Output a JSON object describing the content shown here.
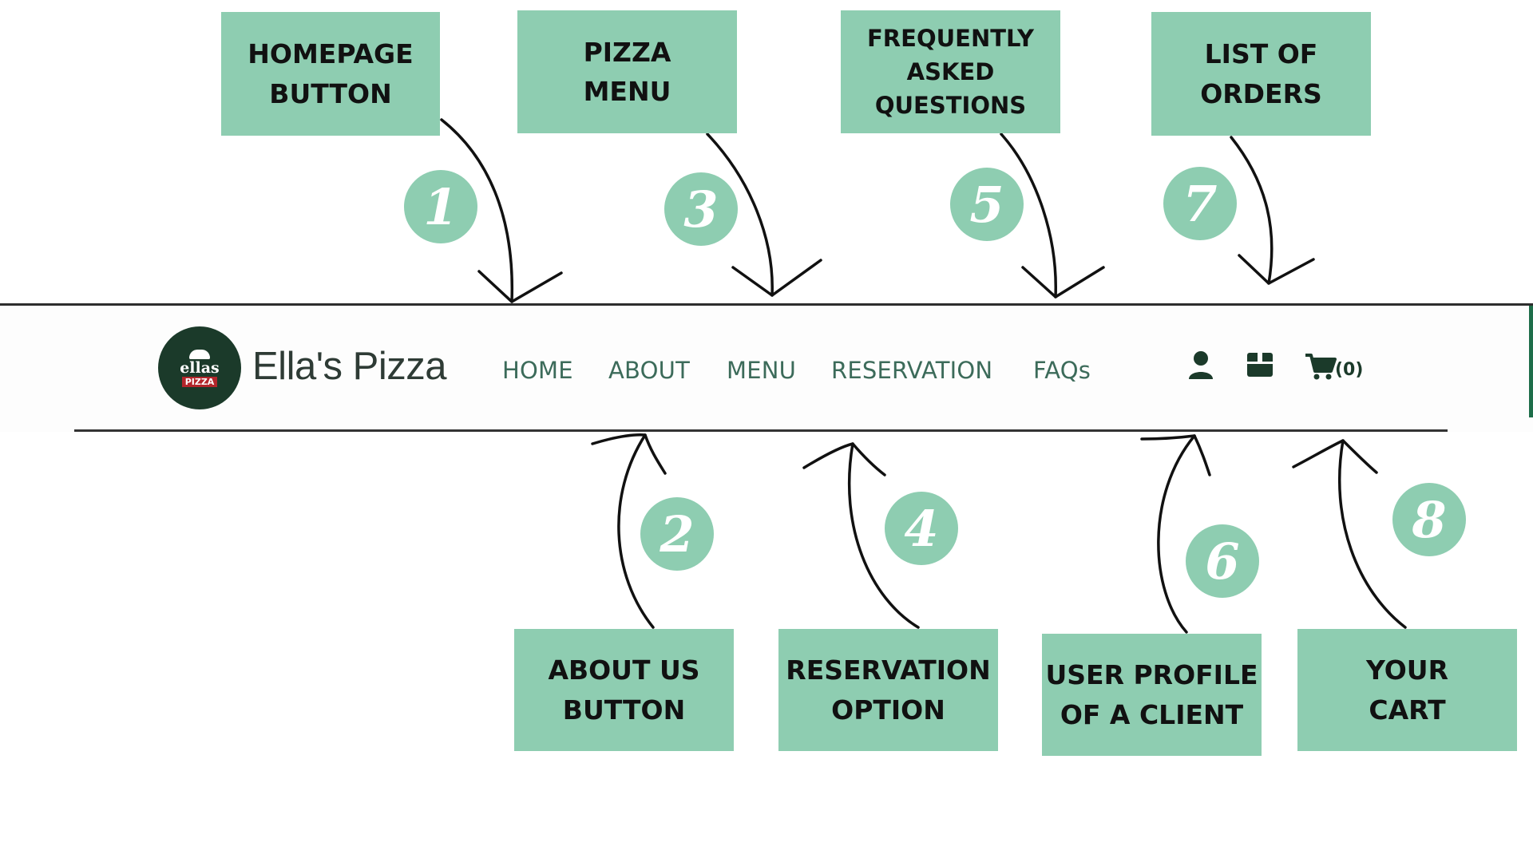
{
  "callouts": {
    "homepage": [
      "HOMEPAGE",
      "BUTTON"
    ],
    "pizza_menu": [
      "PIZZA",
      "MENU"
    ],
    "faq": [
      "FREQUENTLY",
      "ASKED",
      "QUESTIONS"
    ],
    "orders": [
      "LIST OF",
      "ORDERS"
    ],
    "about": [
      "ABOUT US",
      "BUTTON"
    ],
    "reservation": [
      "RESERVATION",
      "OPTION"
    ],
    "profile": [
      "USER PROFILE",
      "OF A CLIENT"
    ],
    "cart": [
      "YOUR",
      "CART"
    ]
  },
  "numbers": [
    "1",
    "2",
    "3",
    "4",
    "5",
    "6",
    "7",
    "8"
  ],
  "navbar": {
    "logo_top": "ellas",
    "logo_bottom": "PIZZA",
    "brand": "Ella's Pizza",
    "links": [
      "HOME",
      "ABOUT",
      "MENU",
      "RESERVATION",
      "FAQs"
    ],
    "cart_count": "(0)",
    "icons": [
      "user-icon",
      "orders-box-icon",
      "cart-icon"
    ]
  },
  "colors": {
    "callout_bg": "#8ecdb1",
    "nav_text": "#3c6b5a",
    "logo_bg": "#1b3a2a",
    "arrow": "#111111"
  }
}
